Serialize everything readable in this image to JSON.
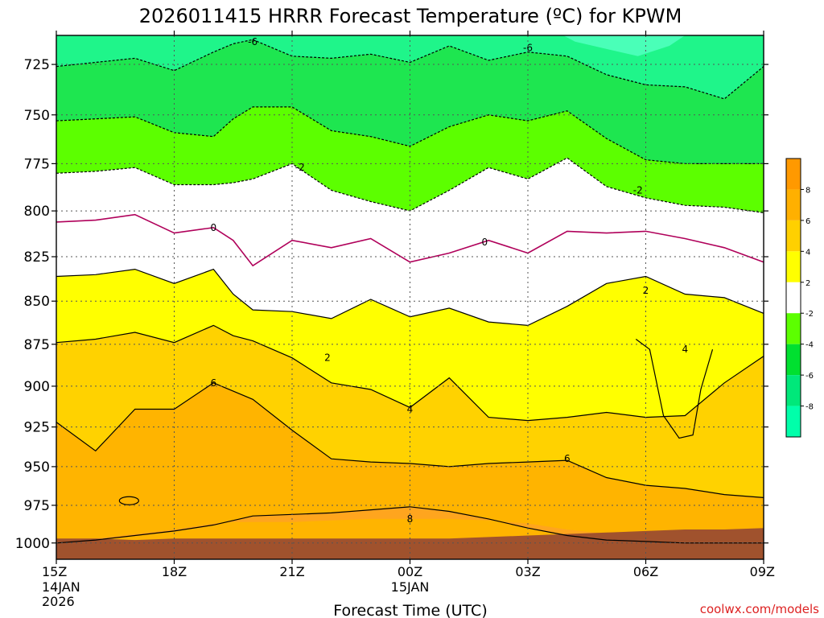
{
  "chart_data": {
    "type": "heatmap",
    "title": "2026011415 HRRR Forecast Temperature (ºC) for KPWM",
    "xlabel": "Forecast Time (UTC)",
    "ylabel": "",
    "y_scale": "log-pressure",
    "ylim": [
      1000,
      700
    ],
    "y_ticks": [
      "725",
      "750",
      "775",
      "800",
      "825",
      "850",
      "875",
      "900",
      "925",
      "950",
      "975",
      "1000"
    ],
    "y_tick_values": [
      725,
      750,
      775,
      800,
      825,
      850,
      875,
      900,
      925,
      950,
      975,
      1000
    ],
    "x_ticks": [
      {
        "label": "15Z",
        "hour": 0,
        "line2": "14JAN",
        "line3": "2026"
      },
      {
        "label": "18Z",
        "hour": 3
      },
      {
        "label": "21Z",
        "hour": 6
      },
      {
        "label": "00Z",
        "hour": 9,
        "line2": "15JAN"
      },
      {
        "label": "03Z",
        "hour": 12
      },
      {
        "label": "06Z",
        "hour": 15
      },
      {
        "label": "09Z",
        "hour": 18
      }
    ],
    "xlim": [
      0,
      18
    ],
    "grid": true,
    "colorbar": {
      "labels": [
        "8",
        "6",
        "4",
        "2",
        "-2",
        "-4",
        "-6",
        "-8"
      ],
      "colors": [
        "#ff9900",
        "#ffb000",
        "#ffd000",
        "#ffff00",
        "#ffffff",
        "#5cff00",
        "#00e030",
        "#00e87a",
        "#00ffaa"
      ]
    },
    "fill_colors": {
      "t_ge_8": "#ffa51e",
      "t_6_8": "#ffb400",
      "t_4_6": "#ffd200",
      "t_2_4": "#ffff00",
      "t_m2_2": "#ffffff",
      "t_m4_m2": "#5cff00",
      "t_m6_m4": "#1ee650",
      "t_lt_m6": "#1ff58a",
      "t_lt_m8": "#4affb8",
      "ground": "#a0522d"
    },
    "contour_labels": [
      "-6",
      "-6",
      "-2",
      "-2",
      "0",
      "0",
      "2",
      "2",
      "4",
      "4",
      "6",
      "6",
      "8"
    ],
    "contour_label_positions": [
      {
        "text": "-6",
        "hour": 5.0,
        "p": 714
      },
      {
        "text": "-6",
        "hour": 12.0,
        "p": 717
      },
      {
        "text": "-2",
        "hour": 6.2,
        "p": 777
      },
      {
        "text": "-2",
        "hour": 14.8,
        "p": 789
      },
      {
        "text": "0",
        "hour": 4.0,
        "p": 809
      },
      {
        "text": "0",
        "hour": 10.9,
        "p": 817
      },
      {
        "text": "2",
        "hour": 6.9,
        "p": 883
      },
      {
        "text": "2",
        "hour": 15.0,
        "p": 844
      },
      {
        "text": "4",
        "hour": 9.0,
        "p": 914
      },
      {
        "text": "4",
        "hour": 16.0,
        "p": 878
      },
      {
        "text": "6",
        "hour": 4.0,
        "p": 898
      },
      {
        "text": "6",
        "hour": 13.0,
        "p": 945
      },
      {
        "text": "8",
        "hour": 9.0,
        "p": 984
      }
    ],
    "isotherms_hours": [
      0,
      1,
      2,
      3,
      4,
      4.5,
      5,
      6,
      7,
      8,
      9,
      10,
      11,
      12,
      13,
      14,
      15,
      16,
      17,
      18
    ],
    "isotherms": {
      "m6": [
        726,
        724,
        722,
        728,
        719,
        715,
        713,
        721,
        722,
        720,
        724,
        716,
        723,
        719,
        721,
        730,
        735,
        736,
        742,
        726
      ],
      "m4": [
        753,
        752,
        751,
        759,
        761,
        752,
        746,
        746,
        758,
        761,
        766,
        756,
        750,
        753,
        748,
        762,
        773,
        775,
        775,
        775
      ],
      "m2": [
        780,
        779,
        777,
        786,
        786,
        785,
        783,
        775,
        789,
        795,
        800,
        789,
        777,
        783,
        772,
        787,
        793,
        797,
        798,
        801
      ],
      "zero": [
        806,
        805,
        802,
        812,
        809,
        816,
        830,
        816,
        820,
        815,
        828,
        823,
        816,
        823,
        811,
        812,
        811,
        815,
        820,
        828
      ],
      "p2": [
        836,
        835,
        832,
        840,
        832,
        846,
        855,
        856,
        860,
        849,
        859,
        854,
        862,
        864,
        853,
        840,
        836,
        846,
        848,
        857
      ],
      "p4": [
        874,
        872,
        868,
        874,
        864,
        870,
        873,
        883,
        898,
        902,
        913,
        895,
        919,
        921,
        919,
        916,
        919,
        918,
        898,
        882
      ],
      "p6": [
        922,
        940,
        914,
        914,
        898,
        903,
        908,
        927,
        945,
        947,
        948,
        950,
        948,
        947,
        946,
        957,
        962,
        964,
        968,
        970
      ],
      "p8_left": [
        1000,
        997,
        994,
        991,
        987,
        986,
        986,
        986,
        985,
        984,
        984,
        984,
        985,
        987,
        991,
        994,
        997,
        999,
        1000,
        1000
      ],
      "p8_right": [
        1000,
        998,
        995,
        992,
        988,
        985,
        982,
        981,
        980,
        978,
        976,
        979,
        984,
        990,
        995,
        998,
        999,
        1000,
        1000,
        1000
      ]
    },
    "surface_pressure": [
      997,
      997,
      998,
      997,
      997,
      997,
      997,
      997,
      997,
      997,
      997,
      997,
      996,
      995,
      994,
      993,
      992,
      991,
      991,
      990
    ],
    "credit": "coolwx.com/models"
  }
}
